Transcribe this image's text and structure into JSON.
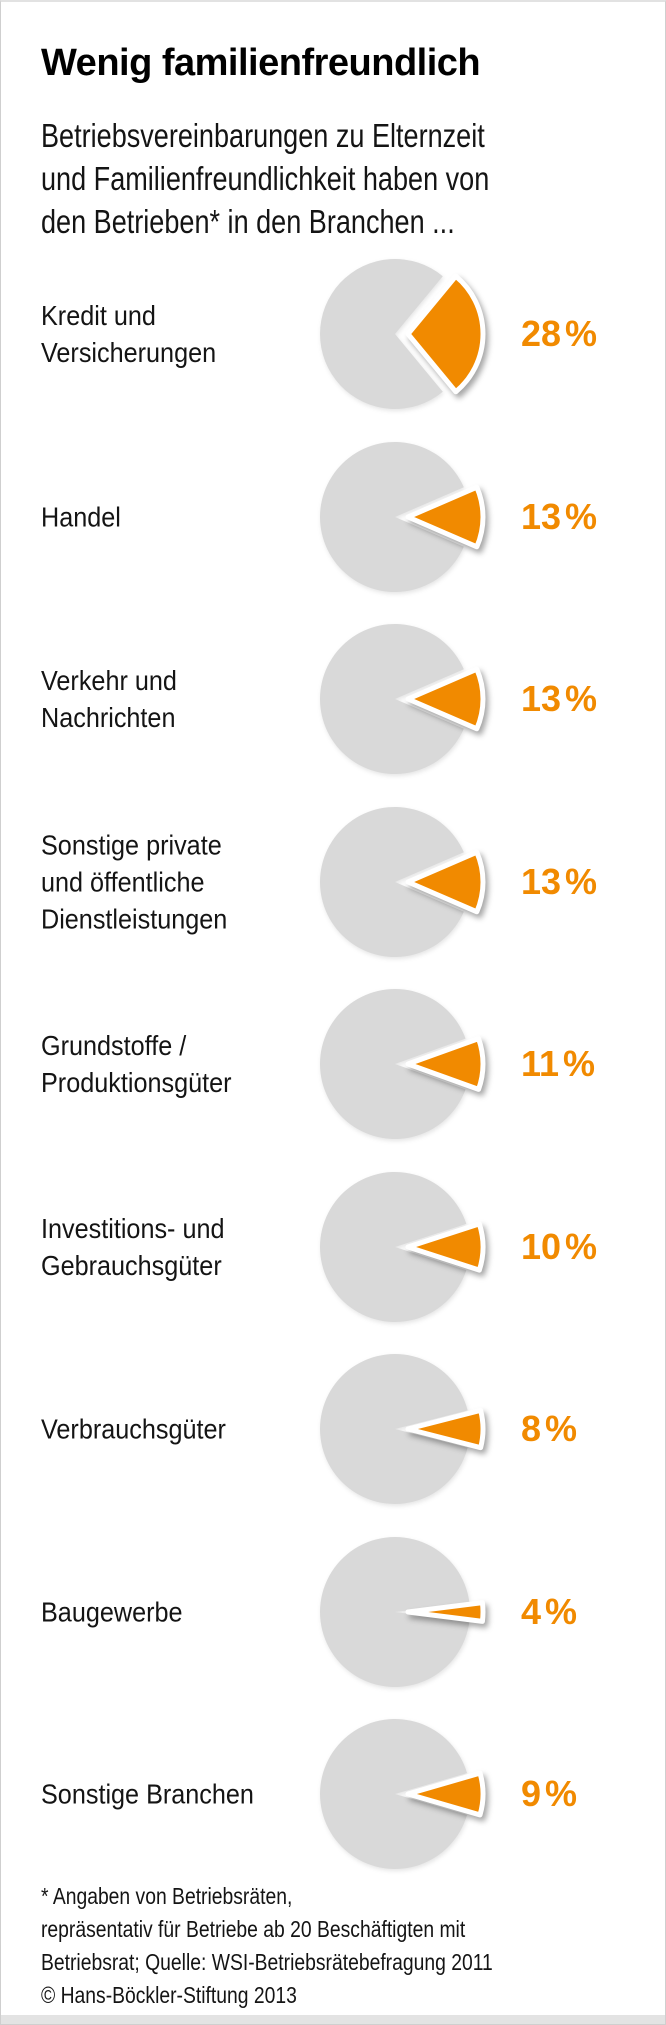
{
  "header": {
    "title": "Wenig familienfreundlich",
    "subtitle_lines": [
      "Betriebsvereinbarungen zu Elternzeit",
      "und Familienfreundlichkeit haben von",
      "den Betrieben* in den Branchen ..."
    ]
  },
  "chart_data": {
    "type": "pie",
    "variant": "small-multiple-pies-exploded-slice",
    "title": "Wenig familienfreundlich",
    "subtitle": "Betriebsvereinbarungen zu Elternzeit und Familienfreundlichkeit haben von den Betrieben* in den Branchen ...",
    "unit": "%",
    "legend_position": "none",
    "categories": [
      "Kredit und Versicherungen",
      "Handel",
      "Verkehr und Nachrichten",
      "Sonstige private und öffentliche Dienstleistungen",
      "Grundstoffe / Produktionsgüter",
      "Investitions- und Gebrauchsgüter",
      "Verbrauchsgüter",
      "Baugewerbe",
      "Sonstige Branchen"
    ],
    "values": [
      28,
      13,
      13,
      13,
      11,
      10,
      8,
      4,
      9
    ],
    "rows": [
      {
        "label_lines": [
          "Kredit und",
          "Versicherungen"
        ],
        "value": 28,
        "value_label": "28 %"
      },
      {
        "label_lines": [
          "Handel"
        ],
        "value": 13,
        "value_label": "13 %"
      },
      {
        "label_lines": [
          "Verkehr und",
          "Nachrichten"
        ],
        "value": 13,
        "value_label": "13 %"
      },
      {
        "label_lines": [
          "Sonstige private",
          "und öffentliche",
          "Dienstleistungen"
        ],
        "value": 13,
        "value_label": "13 %"
      },
      {
        "label_lines": [
          "Grundstoffe /",
          "Produktionsgüter"
        ],
        "value": 11,
        "value_label": "11 %"
      },
      {
        "label_lines": [
          "Investitions- und",
          "Gebrauchsgüter"
        ],
        "value": 10,
        "value_label": "10 %"
      },
      {
        "label_lines": [
          "Verbrauchsgüter"
        ],
        "value": 8,
        "value_label": "8 %"
      },
      {
        "label_lines": [
          "Baugewerbe"
        ],
        "value": 4,
        "value_label": "4 %"
      },
      {
        "label_lines": [
          "Sonstige Branchen"
        ],
        "value": 9,
        "value_label": "9 %"
      }
    ],
    "colors": {
      "slice": "#F18A00",
      "pie_rest": "#D9D9D9",
      "value_text": "#F18A00",
      "label_text": "#141414"
    }
  },
  "footer": {
    "lines": [
      "* Angaben von Betriebsräten,",
      "repräsentativ für Betriebe ab 20 Beschäftigten mit",
      "Betriebsrat; Quelle: WSI-Betriebsrätebefragung 2011",
      "© Hans-Böckler-Stiftung 2013"
    ]
  }
}
